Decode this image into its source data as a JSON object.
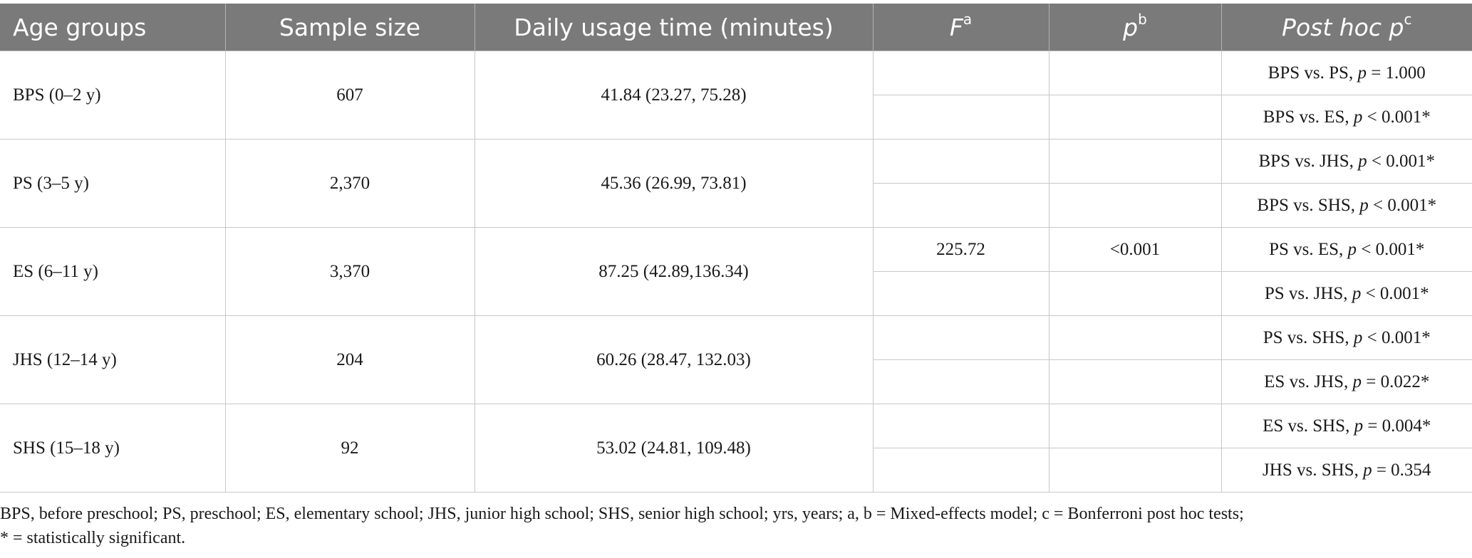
{
  "table": {
    "headers": {
      "age_groups": "Age groups",
      "sample_size": "Sample size",
      "daily_usage": "Daily usage time (minutes)",
      "f_label": "F",
      "f_sup": "a",
      "p_label": "p",
      "p_sup": "b",
      "posthoc_label": "Post hoc p",
      "posthoc_sup": "c"
    },
    "groups": [
      {
        "age": "BPS (0–2 y)",
        "n": "607",
        "usage": "41.84 (23.27, 75.28)"
      },
      {
        "age": "PS (3–5 y)",
        "n": "2,370",
        "usage": "45.36 (26.99, 73.81)"
      },
      {
        "age": "ES (6–11 y)",
        "n": "3,370",
        "usage": "87.25 (42.89,136.34)"
      },
      {
        "age": "JHS (12–14 y)",
        "n": "204",
        "usage": "60.26 (28.47, 132.03)"
      },
      {
        "age": "SHS (15–18 y)",
        "n": "92",
        "usage": "53.02 (24.81, 109.48)"
      }
    ],
    "f_value": "225.72",
    "p_value": "<0.001",
    "posthoc": [
      {
        "comparison": "BPS vs. PS,",
        "p": "p",
        "result": "= 1.000"
      },
      {
        "comparison": "BPS vs. ES,",
        "p": "p",
        "result": "< 0.001*"
      },
      {
        "comparison": "BPS vs. JHS,",
        "p": "p",
        "result": "< 0.001*"
      },
      {
        "comparison": "BPS vs. SHS,",
        "p": "p",
        "result": "< 0.001*"
      },
      {
        "comparison": "PS vs. ES,",
        "p": "p",
        "result": "< 0.001*"
      },
      {
        "comparison": "PS vs. JHS,",
        "p": "p",
        "result": "< 0.001*"
      },
      {
        "comparison": "PS vs. SHS,",
        "p": "p",
        "result": "< 0.001*"
      },
      {
        "comparison": "ES vs. JHS,",
        "p": "p",
        "result": "= 0.022*"
      },
      {
        "comparison": "ES vs. SHS,",
        "p": "p",
        "result": "= 0.004*"
      },
      {
        "comparison": "JHS vs. SHS,",
        "p": "p",
        "result": "= 0.354"
      }
    ]
  },
  "footnotes": {
    "line1": "BPS, before preschool; PS, preschool; ES, elementary school; JHS, junior high school; SHS, senior high school; yrs, years; a, b = Mixed-effects model; c = Bonferroni post hoc tests;",
    "line2": "* = statistically significant."
  },
  "colors": {
    "header_bg": "#7a7a7a",
    "header_text": "#ffffff",
    "grid": "#c8c8c8"
  }
}
